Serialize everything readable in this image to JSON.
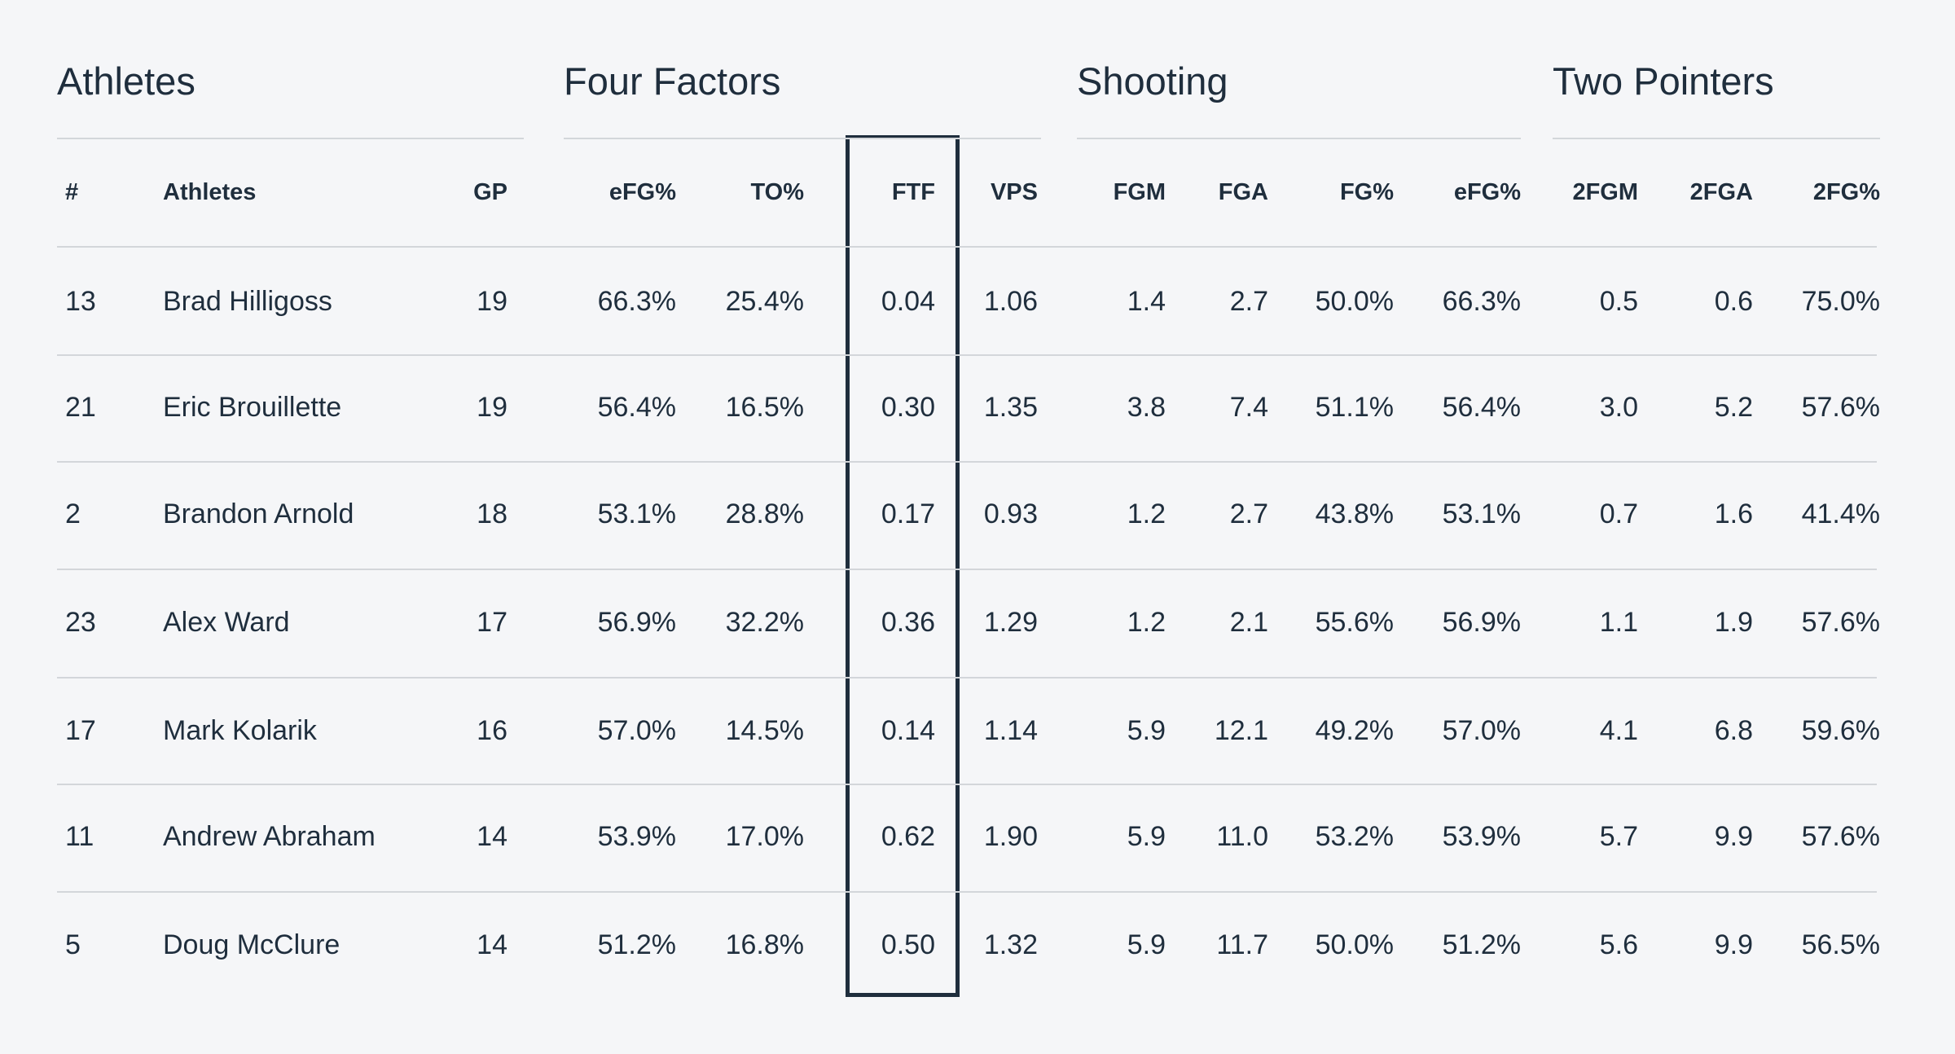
{
  "groups": [
    "Athletes",
    "Four Factors",
    "Shooting",
    "Two Pointers"
  ],
  "columns": [
    "#",
    "Athletes",
    "GP",
    "eFG%",
    "TO%",
    "FTF",
    "VPS",
    "FGM",
    "FGA",
    "FG%",
    "eFG%",
    "2FGM",
    "2FGA",
    "2FG%"
  ],
  "rows": [
    [
      "13",
      "Brad Hilligoss",
      "19",
      "66.3%",
      "25.4%",
      "0.04",
      "1.06",
      "1.4",
      "2.7",
      "50.0%",
      "66.3%",
      "0.5",
      "0.6",
      "75.0%"
    ],
    [
      "21",
      "Eric Brouillette",
      "19",
      "56.4%",
      "16.5%",
      "0.30",
      "1.35",
      "3.8",
      "7.4",
      "51.1%",
      "56.4%",
      "3.0",
      "5.2",
      "57.6%"
    ],
    [
      "2",
      "Brandon Arnold",
      "18",
      "53.1%",
      "28.8%",
      "0.17",
      "0.93",
      "1.2",
      "2.7",
      "43.8%",
      "53.1%",
      "0.7",
      "1.6",
      "41.4%"
    ],
    [
      "23",
      "Alex Ward",
      "17",
      "56.9%",
      "32.2%",
      "0.36",
      "1.29",
      "1.2",
      "2.1",
      "55.6%",
      "56.9%",
      "1.1",
      "1.9",
      "57.6%"
    ],
    [
      "17",
      "Mark Kolarik",
      "16",
      "57.0%",
      "14.5%",
      "0.14",
      "1.14",
      "5.9",
      "12.1",
      "49.2%",
      "57.0%",
      "4.1",
      "6.8",
      "59.6%"
    ],
    [
      "11",
      "Andrew Abraham",
      "14",
      "53.9%",
      "17.0%",
      "0.62",
      "1.90",
      "5.9",
      "11.0",
      "53.2%",
      "53.9%",
      "5.7",
      "9.9",
      "57.6%"
    ],
    [
      "5",
      "Doug McClure",
      "14",
      "51.2%",
      "16.8%",
      "0.50",
      "1.32",
      "5.9",
      "11.7",
      "50.0%",
      "51.2%",
      "5.6",
      "9.9",
      "56.5%"
    ]
  ]
}
